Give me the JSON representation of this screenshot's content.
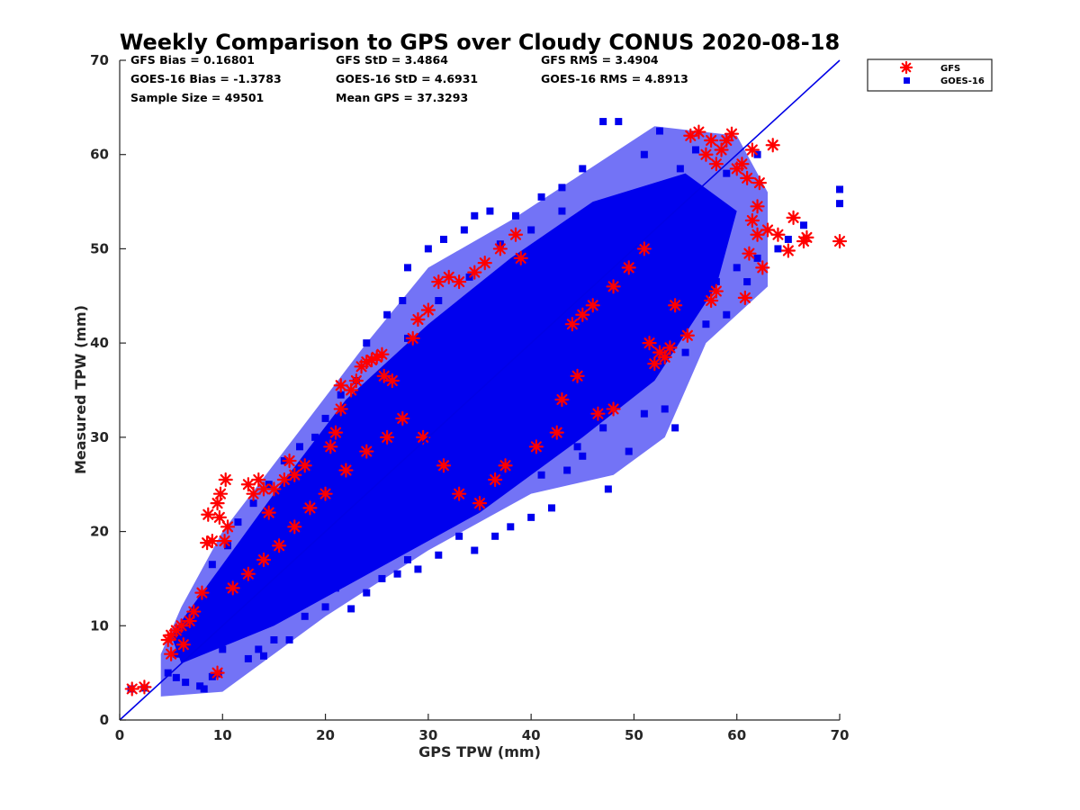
{
  "chart_data": {
    "type": "scatter",
    "title": "Weekly Comparison to GPS over Cloudy CONUS 2020-08-18",
    "xlabel": "GPS TPW (mm)",
    "ylabel": "Measured TPW (mm)",
    "xlim": [
      0,
      70
    ],
    "ylim": [
      0,
      70
    ],
    "xticks": [
      "0",
      "10",
      "20",
      "30",
      "40",
      "50",
      "60",
      "70"
    ],
    "yticks": [
      "0",
      "10",
      "20",
      "30",
      "40",
      "50",
      "60",
      "70"
    ],
    "grid": false,
    "legend_position": "outside top-right",
    "reference_line": {
      "from": [
        0,
        0
      ],
      "to": [
        70,
        70
      ],
      "color": "#0000e6"
    },
    "stats": [
      [
        "GFS Bias = 0.16801",
        "GFS StD = 3.4864",
        "GFS RMS = 3.4904"
      ],
      [
        "GOES-16 Bias = -1.3783",
        "GOES-16 StD = 4.6931",
        "GOES-16 RMS = 4.8913"
      ],
      [
        "Sample Size = 49501",
        "Mean GPS = 37.3293",
        ""
      ]
    ],
    "series": [
      {
        "name": "GOES-16",
        "marker": "square",
        "color": "#0000ee",
        "points": [
          [
            1.1,
            3.3
          ],
          [
            2.4,
            3.4
          ],
          [
            4.7,
            5.0
          ],
          [
            5.5,
            4.5
          ],
          [
            6.4,
            4.0
          ],
          [
            7.8,
            3.6
          ],
          [
            8.2,
            3.3
          ],
          [
            9.0,
            4.6
          ],
          [
            9.6,
            4.9
          ],
          [
            7.0,
            8.5
          ],
          [
            8.0,
            9.5
          ],
          [
            9.5,
            8.0
          ],
          [
            10.0,
            10.5
          ],
          [
            11.0,
            12.0
          ],
          [
            12.0,
            11.0
          ],
          [
            9.0,
            16.5
          ],
          [
            12.5,
            6.5
          ],
          [
            13.5,
            7.5
          ],
          [
            14.0,
            6.8
          ],
          [
            15.0,
            8.5
          ],
          [
            16.5,
            8.5
          ],
          [
            18.0,
            11.0
          ],
          [
            20.0,
            12.0
          ],
          [
            21.0,
            14.0
          ],
          [
            22.5,
            11.8
          ],
          [
            24.0,
            13.5
          ],
          [
            25.5,
            15.0
          ],
          [
            27.0,
            15.5
          ],
          [
            28.0,
            17.0
          ],
          [
            29.0,
            16.0
          ],
          [
            31.0,
            17.5
          ],
          [
            33.0,
            19.5
          ],
          [
            34.5,
            18.0
          ],
          [
            36.5,
            19.5
          ],
          [
            38.0,
            20.5
          ],
          [
            40.0,
            21.5
          ],
          [
            42.0,
            22.5
          ],
          [
            41.0,
            26.0
          ],
          [
            43.5,
            26.5
          ],
          [
            45.0,
            28.0
          ],
          [
            47.0,
            31.0
          ],
          [
            49.5,
            28.5
          ],
          [
            51.0,
            32.5
          ],
          [
            53.0,
            33.0
          ],
          [
            54.0,
            31.0
          ],
          [
            50.0,
            37.0
          ],
          [
            55.0,
            39.0
          ],
          [
            57.0,
            42.0
          ],
          [
            59.0,
            43.0
          ],
          [
            58.0,
            46.5
          ],
          [
            60.0,
            48.0
          ],
          [
            61.0,
            46.5
          ],
          [
            62.0,
            49.0
          ],
          [
            64.0,
            50.0
          ],
          [
            65.0,
            51.0
          ],
          [
            66.5,
            52.5
          ],
          [
            70.0,
            54.8
          ],
          [
            70.0,
            56.3
          ],
          [
            62.0,
            60.0
          ],
          [
            59.0,
            58.0
          ],
          [
            56.0,
            60.5
          ],
          [
            54.5,
            58.5
          ],
          [
            51.0,
            60.0
          ],
          [
            52.5,
            62.5
          ],
          [
            48.5,
            63.5
          ],
          [
            47.0,
            63.5
          ],
          [
            45.0,
            58.5
          ],
          [
            43.0,
            56.5
          ],
          [
            41.0,
            55.5
          ],
          [
            38.5,
            53.5
          ],
          [
            36.0,
            54.0
          ],
          [
            34.5,
            53.5
          ],
          [
            33.5,
            52.0
          ],
          [
            31.5,
            51.0
          ],
          [
            30.0,
            50.0
          ],
          [
            28.0,
            48.0
          ],
          [
            27.5,
            44.5
          ],
          [
            26.0,
            43.0
          ],
          [
            24.0,
            40.0
          ],
          [
            23.0,
            36.0
          ],
          [
            21.5,
            34.5
          ],
          [
            20.0,
            32.0
          ],
          [
            19.0,
            30.0
          ],
          [
            17.5,
            29.0
          ],
          [
            16.0,
            27.5
          ],
          [
            14.5,
            25.0
          ],
          [
            13.0,
            23.0
          ],
          [
            11.5,
            21.0
          ],
          [
            10.5,
            18.5
          ],
          [
            9.0,
            14.0
          ],
          [
            8.0,
            12.5
          ],
          [
            7.0,
            11.0
          ],
          [
            6.0,
            9.0
          ],
          [
            5.5,
            7.0
          ],
          [
            12.0,
            14.0
          ],
          [
            15.0,
            15.5
          ],
          [
            18.0,
            19.0
          ],
          [
            21.0,
            22.5
          ],
          [
            24.0,
            25.0
          ],
          [
            27.0,
            27.5
          ],
          [
            30.0,
            31.0
          ],
          [
            33.0,
            34.0
          ],
          [
            36.0,
            37.5
          ],
          [
            39.0,
            40.0
          ],
          [
            42.0,
            43.0
          ],
          [
            45.0,
            46.0
          ],
          [
            48.0,
            49.0
          ],
          [
            51.0,
            52.0
          ],
          [
            54.0,
            54.5
          ],
          [
            57.0,
            53.0
          ],
          [
            20.0,
            18.0
          ],
          [
            25.0,
            20.5
          ],
          [
            30.0,
            26.0
          ],
          [
            35.0,
            30.0
          ],
          [
            40.0,
            35.0
          ],
          [
            45.0,
            40.0
          ],
          [
            50.0,
            45.0
          ],
          [
            55.0,
            47.0
          ],
          [
            15.0,
            19.0
          ],
          [
            20.0,
            25.0
          ],
          [
            25.0,
            30.0
          ],
          [
            30.0,
            35.0
          ],
          [
            35.0,
            40.0
          ],
          [
            40.0,
            45.0
          ],
          [
            45.0,
            50.0
          ],
          [
            50.0,
            54.0
          ],
          [
            47.5,
            24.5
          ],
          [
            44.5,
            29.0
          ],
          [
            49.0,
            38.0
          ],
          [
            52.0,
            44.0
          ],
          [
            46.0,
            36.5
          ],
          [
            38.5,
            28.0
          ],
          [
            32.0,
            25.0
          ],
          [
            26.0,
            21.0
          ],
          [
            22.0,
            17.5
          ],
          [
            17.0,
            14.5
          ],
          [
            13.0,
            10.0
          ],
          [
            10.0,
            7.5
          ],
          [
            28.0,
            40.5
          ],
          [
            31.0,
            44.5
          ],
          [
            34.0,
            47.0
          ],
          [
            37.0,
            50.5
          ],
          [
            40.0,
            52.0
          ],
          [
            43.0,
            54.0
          ],
          [
            57.5,
            50.0
          ]
        ]
      },
      {
        "name": "GFS",
        "marker": "asterisk",
        "color": "#ff0000",
        "points": [
          [
            1.2,
            3.3
          ],
          [
            2.4,
            3.5
          ],
          [
            4.7,
            8.5
          ],
          [
            5.0,
            9.0
          ],
          [
            5.5,
            9.5
          ],
          [
            6.0,
            10.0
          ],
          [
            6.2,
            8.0
          ],
          [
            6.8,
            10.5
          ],
          [
            7.2,
            11.5
          ],
          [
            5.0,
            7.0
          ],
          [
            8.0,
            13.5
          ],
          [
            8.5,
            18.8
          ],
          [
            8.6,
            21.8
          ],
          [
            9.0,
            19.0
          ],
          [
            9.5,
            23.0
          ],
          [
            9.8,
            24.0
          ],
          [
            9.7,
            21.5
          ],
          [
            10.2,
            19.0
          ],
          [
            10.5,
            20.5
          ],
          [
            10.3,
            25.5
          ],
          [
            9.5,
            5.0
          ],
          [
            12.5,
            25.0
          ],
          [
            13.0,
            24.0
          ],
          [
            13.5,
            25.5
          ],
          [
            14.0,
            24.5
          ],
          [
            14.5,
            22.0
          ],
          [
            15.0,
            24.5
          ],
          [
            16.0,
            25.5
          ],
          [
            16.5,
            27.5
          ],
          [
            17.0,
            26.0
          ],
          [
            18.0,
            27.0
          ],
          [
            20.5,
            29.0
          ],
          [
            21.0,
            30.5
          ],
          [
            21.5,
            33.0
          ],
          [
            21.5,
            35.5
          ],
          [
            22.5,
            35.0
          ],
          [
            23.0,
            36.0
          ],
          [
            23.5,
            37.5
          ],
          [
            24.0,
            38.0
          ],
          [
            24.5,
            38.2
          ],
          [
            25.0,
            38.5
          ],
          [
            25.5,
            38.8
          ],
          [
            25.7,
            36.5
          ],
          [
            26.5,
            36.0
          ],
          [
            28.5,
            40.5
          ],
          [
            29.0,
            42.5
          ],
          [
            30.0,
            43.5
          ],
          [
            31.0,
            46.5
          ],
          [
            32.0,
            47.0
          ],
          [
            33.0,
            46.5
          ],
          [
            34.5,
            47.5
          ],
          [
            35.5,
            48.5
          ],
          [
            37.0,
            50.0
          ],
          [
            38.5,
            51.5
          ],
          [
            39.0,
            49.0
          ],
          [
            44.0,
            42.0
          ],
          [
            45.0,
            43.0
          ],
          [
            46.0,
            44.0
          ],
          [
            48.0,
            46.0
          ],
          [
            49.5,
            48.0
          ],
          [
            51.0,
            50.0
          ],
          [
            51.5,
            40.0
          ],
          [
            52.0,
            37.8
          ],
          [
            52.5,
            39.0
          ],
          [
            53.0,
            38.5
          ],
          [
            53.5,
            39.5
          ],
          [
            54.0,
            44.0
          ],
          [
            55.2,
            40.8
          ],
          [
            55.5,
            62.0
          ],
          [
            56.3,
            62.4
          ],
          [
            57.0,
            60.0
          ],
          [
            57.5,
            61.5
          ],
          [
            58.0,
            59.0
          ],
          [
            58.5,
            60.5
          ],
          [
            59.0,
            61.5
          ],
          [
            59.5,
            62.2
          ],
          [
            60.0,
            58.5
          ],
          [
            60.5,
            59.0
          ],
          [
            61.0,
            57.5
          ],
          [
            61.5,
            60.5
          ],
          [
            62.2,
            57.0
          ],
          [
            62.0,
            54.5
          ],
          [
            61.5,
            53.0
          ],
          [
            62.0,
            51.5
          ],
          [
            61.2,
            49.5
          ],
          [
            62.5,
            48.0
          ],
          [
            60.8,
            44.8
          ],
          [
            57.5,
            44.5
          ],
          [
            58.0,
            45.5
          ],
          [
            63.5,
            61.0
          ],
          [
            63.0,
            52.0
          ],
          [
            64.0,
            51.5
          ],
          [
            65.0,
            49.8
          ],
          [
            65.5,
            53.3
          ],
          [
            66.5,
            50.8
          ],
          [
            66.8,
            51.2
          ],
          [
            70.0,
            50.8
          ],
          [
            48.0,
            33.0
          ],
          [
            46.5,
            32.5
          ],
          [
            44.5,
            36.5
          ],
          [
            43.0,
            34.0
          ],
          [
            42.5,
            30.5
          ],
          [
            40.5,
            29.0
          ],
          [
            37.5,
            27.0
          ],
          [
            36.5,
            25.5
          ],
          [
            35.0,
            23.0
          ],
          [
            33.0,
            24.0
          ],
          [
            31.5,
            27.0
          ],
          [
            29.5,
            30.0
          ],
          [
            27.5,
            32.0
          ],
          [
            26.0,
            30.0
          ],
          [
            24.0,
            28.5
          ],
          [
            22.0,
            26.5
          ],
          [
            20.0,
            24.0
          ],
          [
            18.5,
            22.5
          ],
          [
            17.0,
            20.5
          ],
          [
            15.5,
            18.5
          ],
          [
            14.0,
            17.0
          ],
          [
            12.5,
            15.5
          ],
          [
            11.0,
            14.0
          ]
        ]
      }
    ]
  }
}
